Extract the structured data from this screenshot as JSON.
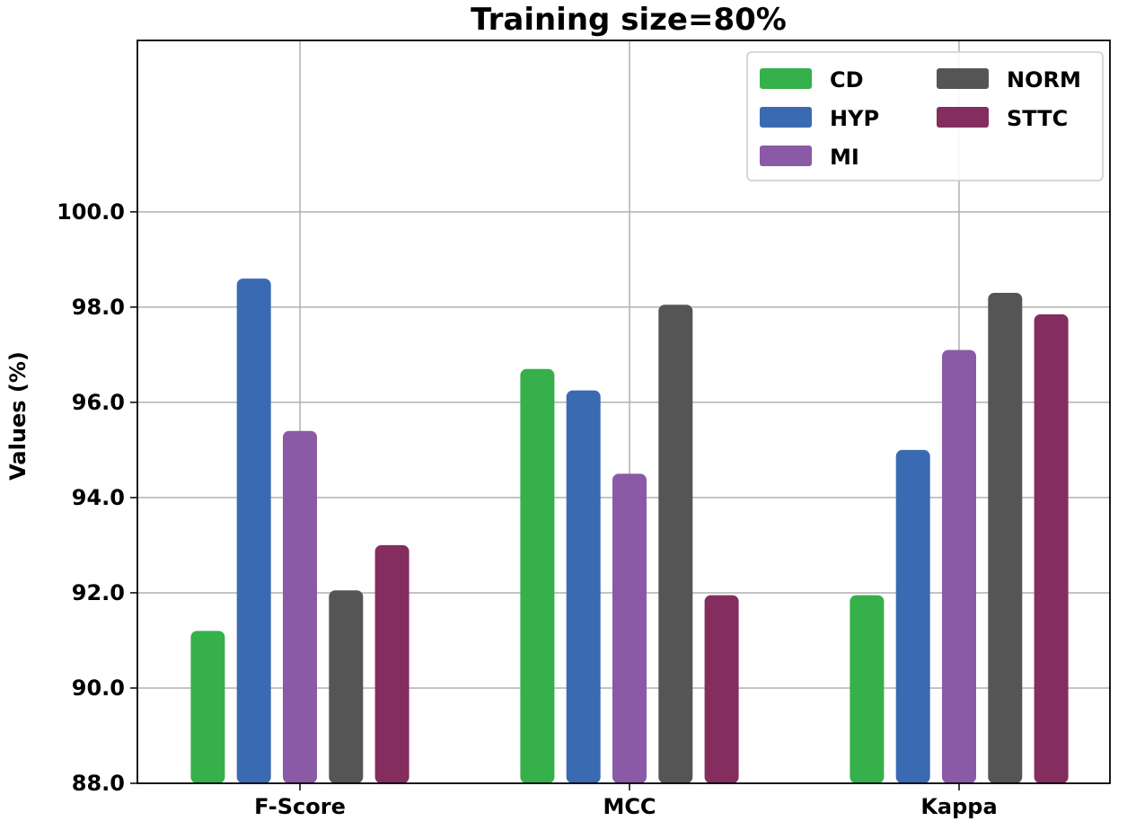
{
  "chart_data": {
    "type": "bar",
    "title": "Training size=80%",
    "xlabel": "",
    "ylabel": "Values (%)",
    "ylim": [
      88.0,
      103.6
    ],
    "yticks": [
      "88.0",
      "90.0",
      "92.0",
      "94.0",
      "96.0",
      "98.0",
      "100.0"
    ],
    "grid": true,
    "legend_position": "top-right",
    "categories": [
      "F-Score",
      "MCC",
      "Kappa"
    ],
    "series": [
      {
        "name": "CD",
        "color": "#35b04a",
        "values": [
          91.2,
          96.7,
          91.95
        ]
      },
      {
        "name": "HYP",
        "color": "#3a6bb2",
        "values": [
          98.6,
          96.25,
          95.0
        ]
      },
      {
        "name": "MI",
        "color": "#8a5aa6",
        "values": [
          95.4,
          94.5,
          97.1
        ]
      },
      {
        "name": "NORM",
        "color": "#555555",
        "values": [
          92.05,
          98.05,
          98.3
        ]
      },
      {
        "name": "STTC",
        "color": "#832e5f",
        "values": [
          93.0,
          91.95,
          97.85
        ]
      }
    ]
  }
}
